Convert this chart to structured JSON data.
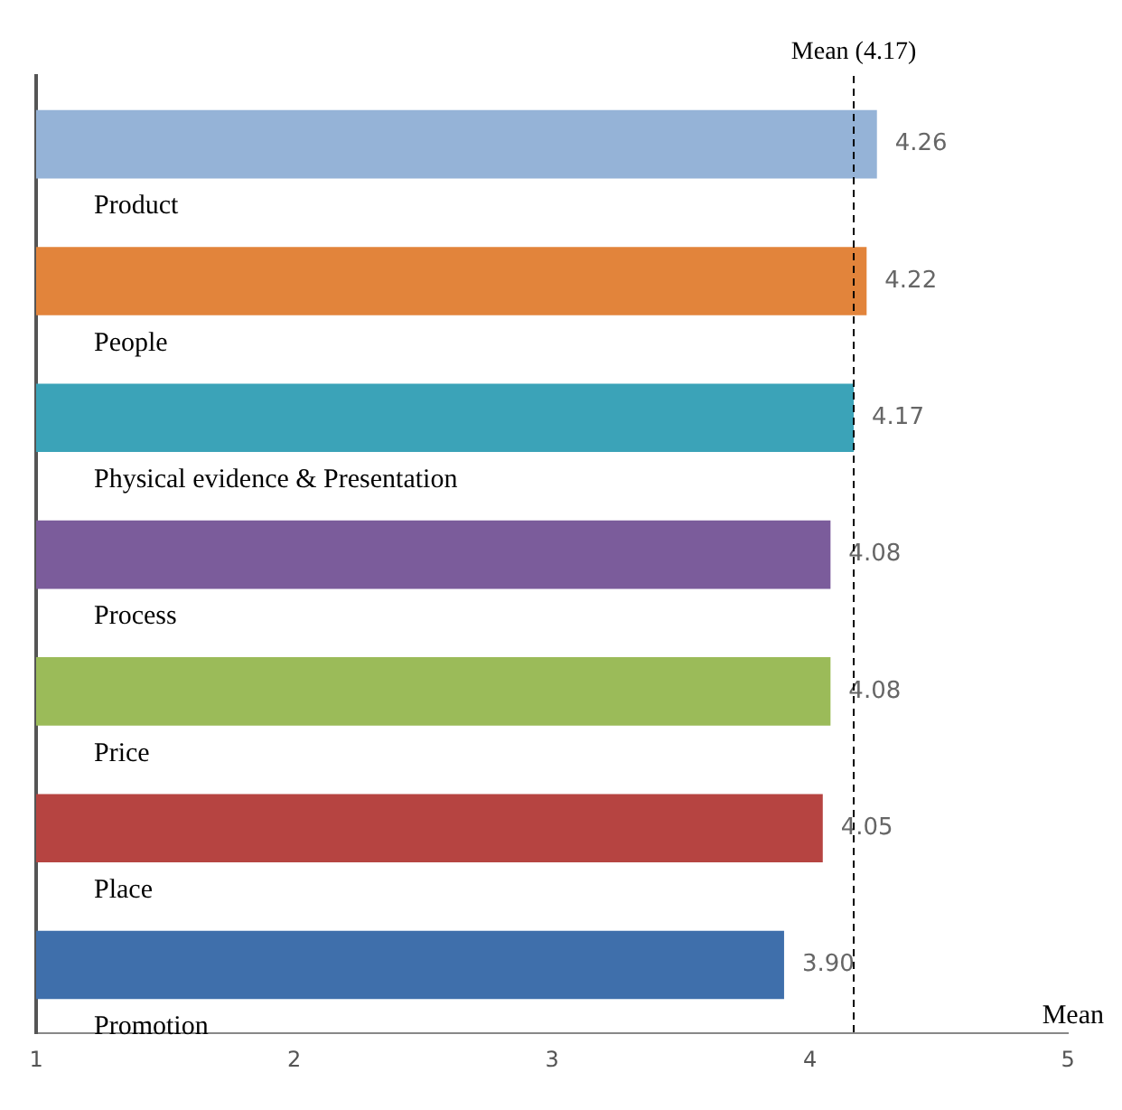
{
  "chart_data": {
    "type": "bar",
    "orientation": "horizontal",
    "xlabel": "Mean",
    "categories": [
      "Product",
      "People",
      "Physical evidence & Presentation",
      "Process",
      "Price",
      "Place",
      "Promotion"
    ],
    "values": [
      4.26,
      4.22,
      4.17,
      4.08,
      4.08,
      4.05,
      3.9
    ],
    "colors": [
      "#95b3d7",
      "#e2843b",
      "#3ba3b8",
      "#7b5c9b",
      "#9bbb59",
      "#b64441",
      "#3f6fab"
    ],
    "xlim": [
      1,
      5
    ],
    "xticks": [
      1,
      2,
      3,
      4,
      5
    ],
    "ref_lines": [
      {
        "axis": "x",
        "value": 4.17,
        "label": "Mean (4.17)",
        "line_style": "dashed",
        "color": "#000000"
      }
    ],
    "value_labels": [
      "4.26",
      "4.22",
      "4.17",
      "4.08",
      "4.08",
      "4.05",
      "3.90"
    ],
    "grid": false,
    "legend": false
  }
}
